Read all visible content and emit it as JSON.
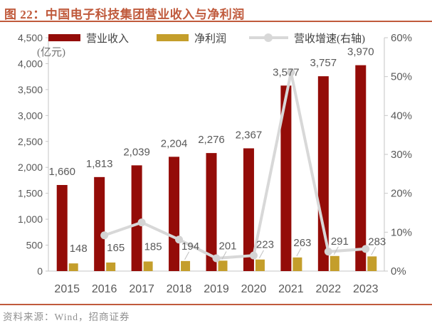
{
  "title": "图 22：中国电子科技集团营业收入与净利润",
  "unit_label": "(亿元)",
  "footer": {
    "source": "资料来源：Wind，招商证券"
  },
  "legend": {
    "items": [
      {
        "label": "营业收入",
        "type": "bar",
        "color": "#940C08"
      },
      {
        "label": "净利润",
        "type": "bar",
        "color": "#C49E2B"
      },
      {
        "label": "营收增速(右轴)",
        "type": "line",
        "color": "#D8D8D8",
        "marker_color": "#D4D4D4"
      }
    ]
  },
  "colors": {
    "accent": "#C05A3C",
    "axis_line": "#C6C6C6",
    "tick_text": "#595959",
    "leader_line": "#BFBFBF"
  },
  "chart_data": {
    "type": "bar",
    "title": "中国电子科技集团营业收入与净利润",
    "categories": [
      "2015",
      "2016",
      "2017",
      "2018",
      "2019",
      "2020",
      "2021",
      "2022",
      "2023"
    ],
    "series": [
      {
        "name": "营业收入",
        "type": "bar",
        "axis": "left",
        "color": "#940C08",
        "values": [
          1660,
          1813,
          2039,
          2204,
          2276,
          2367,
          3577,
          3757,
          3970
        ],
        "labels": [
          "1,660",
          "1,813",
          "2,039",
          "2,204",
          "2,276",
          "2,367",
          "3,577",
          "3,757",
          "3,970"
        ]
      },
      {
        "name": "净利润",
        "type": "bar",
        "axis": "left",
        "color": "#C49E2B",
        "values": [
          148,
          165,
          185,
          194,
          201,
          223,
          263,
          291,
          283
        ],
        "labels": [
          "148",
          "165",
          "185",
          "194",
          "201",
          "223",
          "263",
          "291",
          "283"
        ]
      },
      {
        "name": "营收增速(右轴)",
        "type": "line",
        "axis": "right",
        "color": "#D8D8D8",
        "x": [
          "2016",
          "2017",
          "2018",
          "2019",
          "2020",
          "2021",
          "2022",
          "2023"
        ],
        "values": [
          9.2,
          12.5,
          8.1,
          3.3,
          4.0,
          51.1,
          5.0,
          5.7
        ]
      }
    ],
    "left_axis": {
      "min": 0,
      "max": 4500,
      "step": 500,
      "title": "(亿元)",
      "tick_labels": [
        "0",
        "500",
        "1,000",
        "1,500",
        "2,000",
        "2,500",
        "3,000",
        "3,500",
        "4,000",
        "4,500"
      ]
    },
    "right_axis": {
      "min": 0,
      "max": 60,
      "step": 10,
      "tick_labels": [
        "0%",
        "10%",
        "20%",
        "30%",
        "40%",
        "50%",
        "60%"
      ]
    },
    "grid": false,
    "legend_position": "top"
  }
}
